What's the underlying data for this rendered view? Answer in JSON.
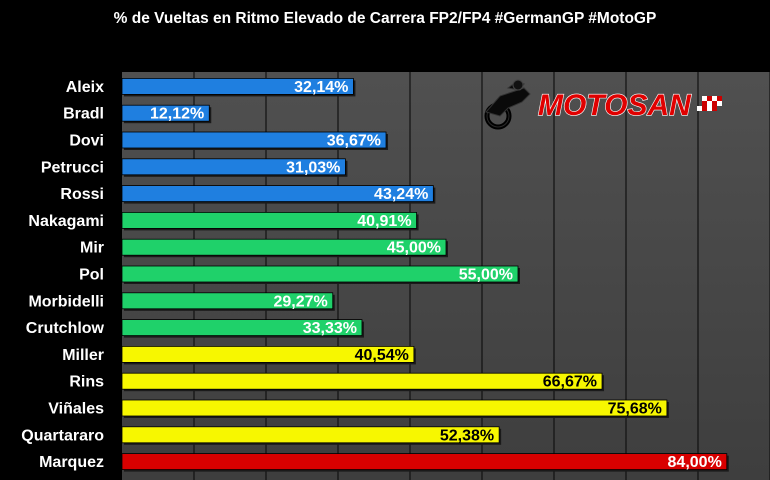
{
  "chart_data": {
    "type": "bar",
    "orientation": "horizontal",
    "title": "% de Vueltas en Ritmo Elevado de Carrera FP2/FP4 #GermanGP #MotoGP",
    "categories": [
      "Aleix",
      "Bradl",
      "Dovi",
      "Petrucci",
      "Rossi",
      "Nakagami",
      "Mir",
      "Pol",
      "Morbidelli",
      "Crutchlow",
      "Miller",
      "Rins",
      "Viñales",
      "Quartararo",
      "Marquez"
    ],
    "values": [
      32.14,
      12.12,
      36.67,
      31.03,
      43.24,
      40.91,
      45.0,
      55.0,
      29.27,
      33.33,
      40.54,
      66.67,
      75.68,
      52.38,
      84.0
    ],
    "value_labels": [
      "32,14%",
      "12,12%",
      "36,67%",
      "31,03%",
      "43,24%",
      "40,91%",
      "45,00%",
      "55,00%",
      "29,27%",
      "33,33%",
      "40,54%",
      "66,67%",
      "75,68%",
      "52,38%",
      "84,00%"
    ],
    "bar_colors": [
      "#1f7fe0",
      "#1f7fe0",
      "#1f7fe0",
      "#1f7fe0",
      "#1f7fe0",
      "#1fd16a",
      "#1fd16a",
      "#1fd16a",
      "#1fd16a",
      "#1fd16a",
      "#f7f700",
      "#f7f700",
      "#f7f700",
      "#f7f700",
      "#d80000"
    ],
    "label_colors": [
      "#ffffff",
      "#ffffff",
      "#ffffff",
      "#ffffff",
      "#ffffff",
      "#ffffff",
      "#ffffff",
      "#ffffff",
      "#ffffff",
      "#ffffff",
      "#000000",
      "#000000",
      "#000000",
      "#000000",
      "#ffffff"
    ],
    "xlim": [
      0,
      90
    ],
    "gridlines_x": [
      10,
      20,
      30,
      40,
      50,
      60,
      70,
      80,
      90
    ],
    "grid": true,
    "legend": "none",
    "background": "#000000",
    "plot_background": "#4a4a4a",
    "gridline_color": "#111111"
  },
  "logo": {
    "text": "MOTOSAN",
    "color": "#e00000",
    "outline": "#ffffff"
  }
}
